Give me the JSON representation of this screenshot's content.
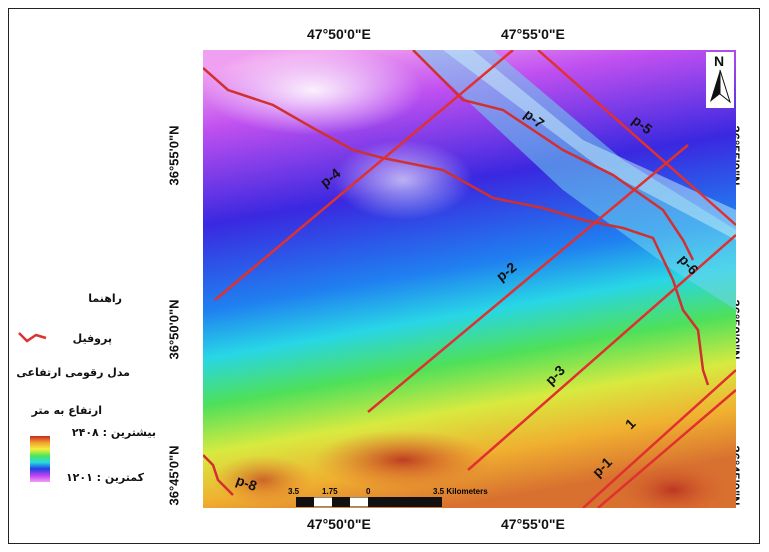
{
  "map": {
    "top_ticks": [
      "47°50'0\"E",
      "47°55'0\"E"
    ],
    "bottom_ticks": [
      "47°50'0\"E",
      "47°55'0\"E"
    ],
    "left_ticks": [
      "36°55'0\"N",
      "36°50'0\"N",
      "36°45'0\"N"
    ],
    "right_ticks": [
      "36°55'0\"N",
      "36°50'0\"N",
      "36°45'0\"N"
    ],
    "north_label": "N",
    "profile_labels": [
      "p-1",
      "1",
      "p-2",
      "p-3",
      "p-4",
      "p-5",
      "p-6",
      "p-7",
      "p-8"
    ],
    "scale": {
      "ticks": [
        "3.5",
        "1.75",
        "0",
        "3.5 Kilometers"
      ]
    },
    "colors": {
      "profile_line": "#e03030",
      "river_line": "#d03030",
      "ramp_high": "#c8281e",
      "ramp_low": "#f0a0f0"
    }
  },
  "legend": {
    "title": "راهنما",
    "profile_item": "پروفیل",
    "dem_item": "مدل رقومی ارتفاعی",
    "elevation_title": "ارتفاع به متر",
    "max_label": "بیشترین : ۲۴۰۸",
    "min_label": "کمترین : ۱۲۰۱"
  }
}
